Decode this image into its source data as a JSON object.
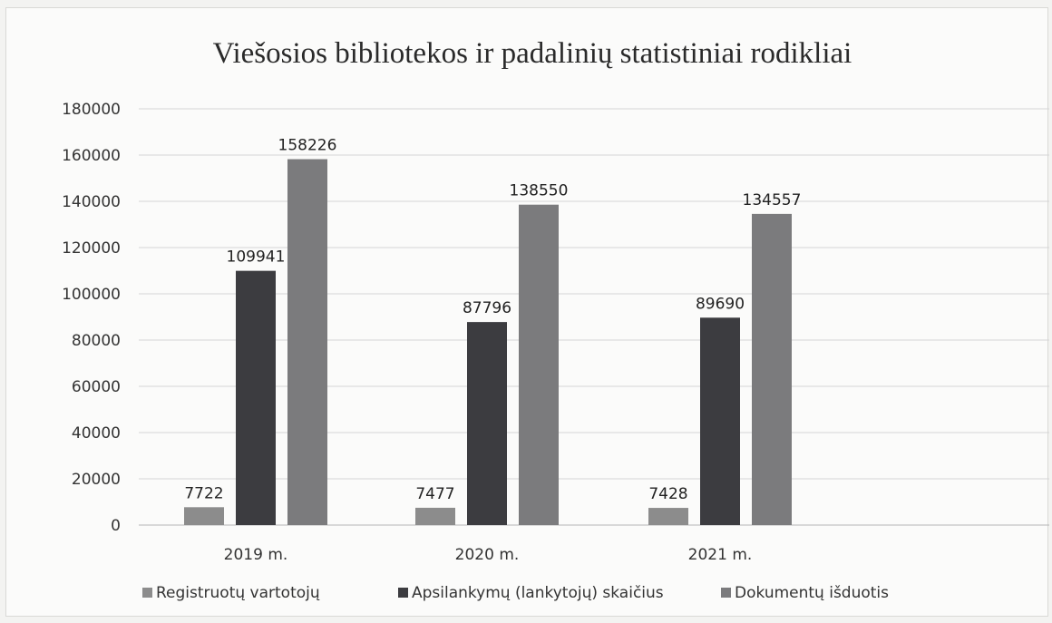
{
  "chart_data": {
    "type": "bar",
    "title": "Viešosios bibliotekos ir padalinių statistiniai rodikliai",
    "categories": [
      "2019 m.",
      "2020 m.",
      "2021 m."
    ],
    "series": [
      {
        "name": "Registruotų vartotojų",
        "values": [
          7722,
          7477,
          7428
        ],
        "color": "#8c8c8c"
      },
      {
        "name": "Apsilankymų (lankytojų) skaičius",
        "values": [
          109941,
          87796,
          89690
        ],
        "color": "#3c3c40"
      },
      {
        "name": "Dokumentų išduotis",
        "values": [
          158226,
          138550,
          134557
        ],
        "color": "#7b7b7d"
      }
    ],
    "yticks": [
      "0",
      "20000",
      "40000",
      "60000",
      "80000",
      "100000",
      "120000",
      "140000",
      "160000",
      "180000"
    ],
    "ylim": [
      0,
      180000
    ],
    "grid": true,
    "legend_position": "bottom",
    "data_labels": true
  }
}
